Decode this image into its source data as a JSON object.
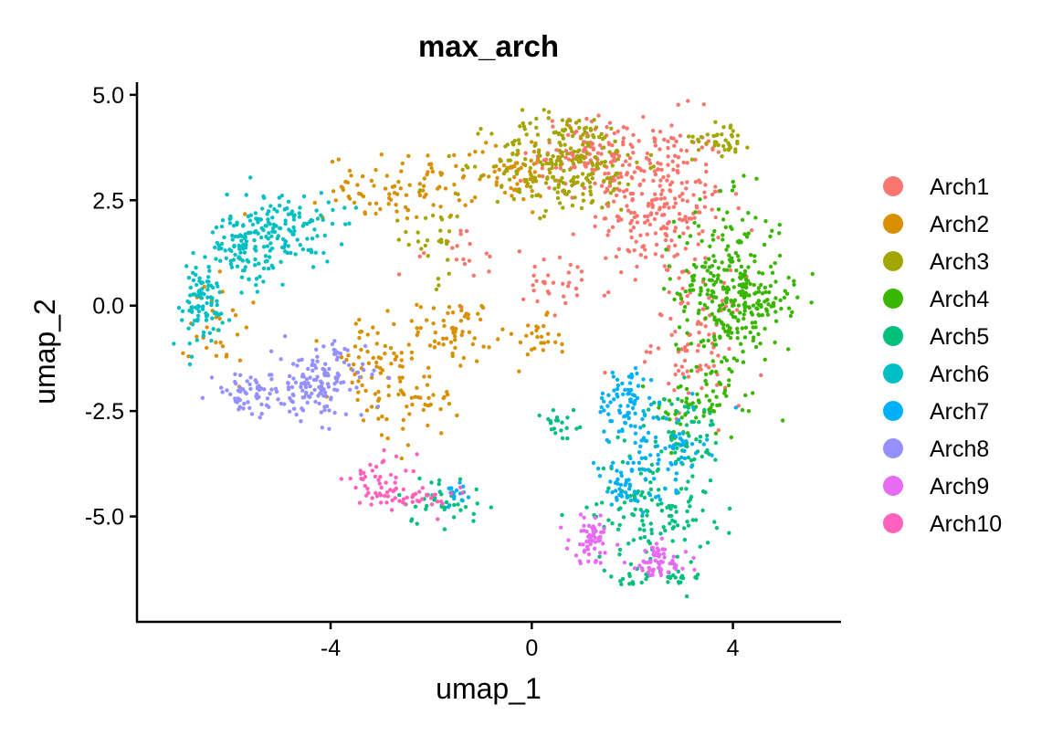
{
  "chart_data": {
    "type": "scatter",
    "title": "max_arch",
    "xlabel": "umap_1",
    "ylabel": "umap_2",
    "xlim": [
      -7.85,
      6.15
    ],
    "ylim": [
      -7.5,
      5.3
    ],
    "x_ticks": [
      -4,
      0,
      4
    ],
    "x_tick_labels": [
      "-4",
      "0",
      "4"
    ],
    "y_ticks": [
      5.0,
      2.5,
      0.0,
      -2.5,
      -5.0
    ],
    "y_tick_labels": [
      "5.0",
      "2.5",
      "0.0",
      "-2.5",
      "-5.0"
    ],
    "grid": false,
    "legend_position": "right",
    "series": [
      {
        "name": "Arch1",
        "color": "#F8766D",
        "clusters": [
          {
            "cx": 2.5,
            "cy": 2.5,
            "sx": 0.9,
            "sy": 1.3,
            "n": 260
          },
          {
            "cx": 1.2,
            "cy": 3.6,
            "sx": 0.7,
            "sy": 0.6,
            "n": 120
          },
          {
            "cx": 3.3,
            "cy": -0.8,
            "sx": 0.6,
            "sy": 1.0,
            "n": 90
          },
          {
            "cx": 0.6,
            "cy": 0.4,
            "sx": 0.7,
            "sy": 0.5,
            "n": 30
          },
          {
            "cx": -1.4,
            "cy": 1.2,
            "sx": 0.8,
            "sy": 0.6,
            "n": 20
          }
        ]
      },
      {
        "name": "Arch2",
        "color": "#D89000",
        "clusters": [
          {
            "cx": -2.6,
            "cy": 2.8,
            "sx": 1.0,
            "sy": 0.5,
            "n": 90
          },
          {
            "cx": -1.5,
            "cy": -0.6,
            "sx": 0.5,
            "sy": 0.5,
            "n": 60
          },
          {
            "cx": -3.2,
            "cy": -1.6,
            "sx": 0.6,
            "sy": 0.9,
            "n": 70
          },
          {
            "cx": -2.2,
            "cy": -2.2,
            "sx": 0.5,
            "sy": 0.6,
            "n": 40
          },
          {
            "cx": 0.1,
            "cy": -0.9,
            "sx": 0.3,
            "sy": 0.4,
            "n": 25
          },
          {
            "cx": -0.4,
            "cy": 3.2,
            "sx": 0.6,
            "sy": 0.5,
            "n": 60
          },
          {
            "cx": -6.2,
            "cy": -0.4,
            "sx": 0.4,
            "sy": 1.0,
            "n": 30
          }
        ]
      },
      {
        "name": "Arch3",
        "color": "#A3A500",
        "clusters": [
          {
            "cx": 0.7,
            "cy": 3.4,
            "sx": 1.0,
            "sy": 0.8,
            "n": 240
          },
          {
            "cx": 3.8,
            "cy": 4.0,
            "sx": 0.4,
            "sy": 0.3,
            "n": 40
          },
          {
            "cx": -2.0,
            "cy": 1.6,
            "sx": 0.5,
            "sy": 0.7,
            "n": 30
          }
        ]
      },
      {
        "name": "Arch4",
        "color": "#39B600",
        "clusters": [
          {
            "cx": 3.9,
            "cy": 0.3,
            "sx": 0.7,
            "sy": 1.4,
            "n": 300
          },
          {
            "cx": 4.7,
            "cy": 0.1,
            "sx": 0.4,
            "sy": 0.4,
            "n": 40
          },
          {
            "cx": 3.3,
            "cy": -2.5,
            "sx": 0.6,
            "sy": 0.5,
            "n": 50
          }
        ]
      },
      {
        "name": "Arch5",
        "color": "#00BF7D",
        "clusters": [
          {
            "cx": 2.4,
            "cy": -4.8,
            "sx": 0.8,
            "sy": 0.9,
            "n": 140
          },
          {
            "cx": 3.0,
            "cy": -3.0,
            "sx": 0.5,
            "sy": 0.6,
            "n": 60
          },
          {
            "cx": -1.8,
            "cy": -4.6,
            "sx": 0.6,
            "sy": 0.4,
            "n": 40
          },
          {
            "cx": 0.6,
            "cy": -2.8,
            "sx": 0.3,
            "sy": 0.4,
            "n": 20
          },
          {
            "cx": 2.5,
            "cy": -6.5,
            "sx": 0.6,
            "sy": 0.2,
            "n": 30
          }
        ]
      },
      {
        "name": "Arch6",
        "color": "#00BFC4",
        "clusters": [
          {
            "cx": -5.0,
            "cy": 1.8,
            "sx": 0.7,
            "sy": 0.6,
            "n": 160
          },
          {
            "cx": -6.6,
            "cy": 0.0,
            "sx": 0.4,
            "sy": 0.7,
            "n": 90
          },
          {
            "cx": -5.8,
            "cy": 1.3,
            "sx": 0.4,
            "sy": 0.5,
            "n": 60
          }
        ]
      },
      {
        "name": "Arch7",
        "color": "#00B0F6",
        "clusters": [
          {
            "cx": 1.9,
            "cy": -2.3,
            "sx": 0.4,
            "sy": 0.6,
            "n": 80
          },
          {
            "cx": 2.7,
            "cy": -3.4,
            "sx": 0.5,
            "sy": 0.6,
            "n": 60
          },
          {
            "cx": 1.8,
            "cy": -4.3,
            "sx": 0.5,
            "sy": 0.5,
            "n": 50
          },
          {
            "cx": -1.5,
            "cy": -4.5,
            "sx": 0.3,
            "sy": 0.2,
            "n": 15
          }
        ]
      },
      {
        "name": "Arch8",
        "color": "#9590FF",
        "clusters": [
          {
            "cx": -4.2,
            "cy": -1.8,
            "sx": 0.6,
            "sy": 0.6,
            "n": 140
          },
          {
            "cx": -5.6,
            "cy": -2.1,
            "sx": 0.5,
            "sy": 0.3,
            "n": 60
          }
        ]
      },
      {
        "name": "Arch9",
        "color": "#E76BF3",
        "clusters": [
          {
            "cx": 1.2,
            "cy": -5.5,
            "sx": 0.3,
            "sy": 0.4,
            "n": 60
          },
          {
            "cx": 2.5,
            "cy": -6.1,
            "sx": 0.4,
            "sy": 0.3,
            "n": 60
          }
        ]
      },
      {
        "name": "Arch10",
        "color": "#FF62BC",
        "clusters": [
          {
            "cx": -3.0,
            "cy": -4.2,
            "sx": 0.5,
            "sy": 0.4,
            "n": 50
          },
          {
            "cx": -2.2,
            "cy": -4.6,
            "sx": 0.5,
            "sy": 0.2,
            "n": 30
          }
        ]
      }
    ]
  }
}
